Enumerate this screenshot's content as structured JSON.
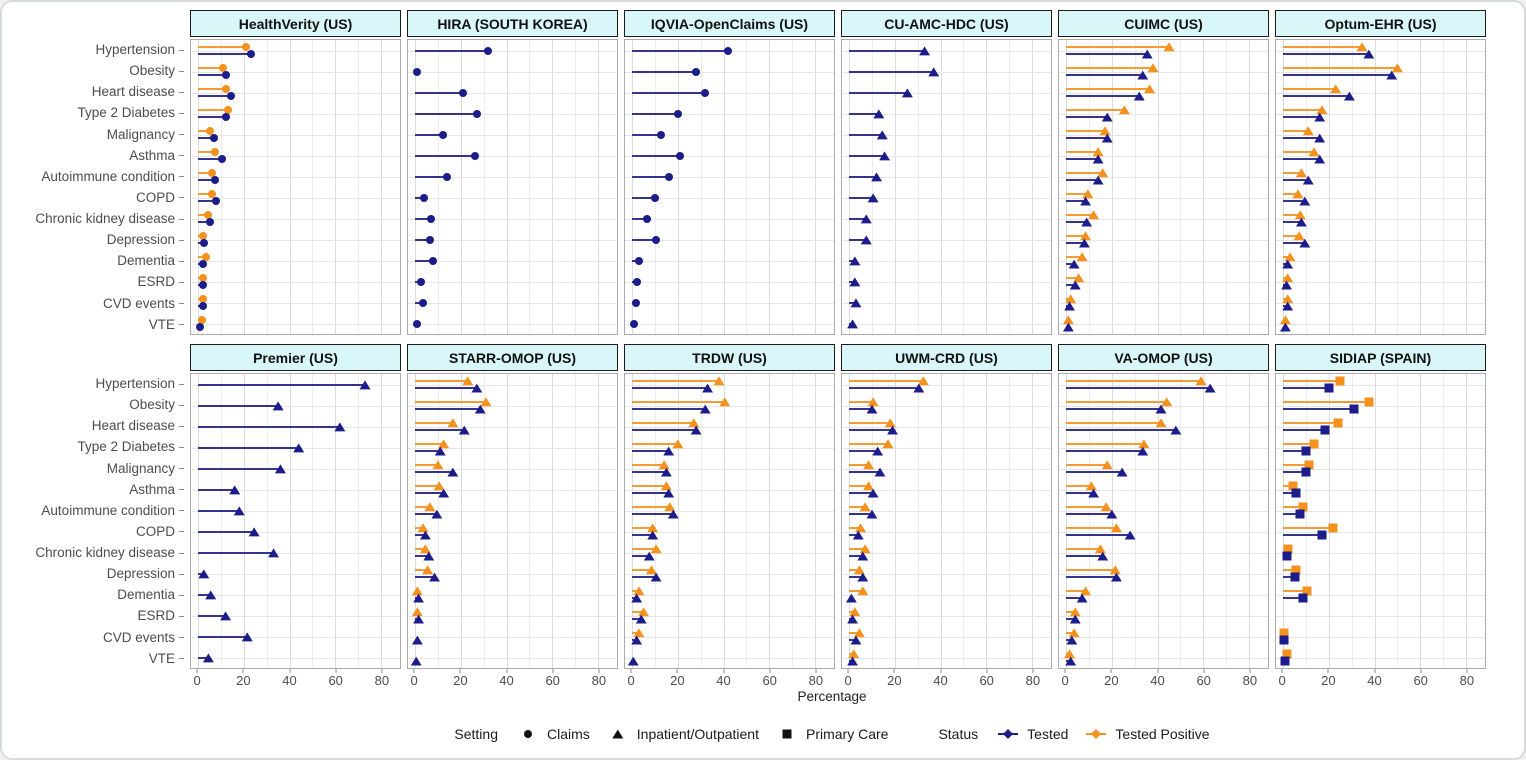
{
  "figure": {
    "xlabel": "Percentage",
    "x_ticks": [
      0,
      20,
      40,
      60,
      80
    ],
    "colors": {
      "tested": "#1c1c8a",
      "tested_line": "#34348c",
      "tested_positive": "#f5921e",
      "tested_positive_line": "#f59b33",
      "header_bg": "#d9f6f8",
      "legend_shape": "#111111"
    },
    "legend": {
      "setting_label": "Setting",
      "settings": [
        {
          "label": "Claims",
          "shape": "circle"
        },
        {
          "label": "Inpatient/Outpatient",
          "shape": "triangle"
        },
        {
          "label": "Primary Care",
          "shape": "square"
        }
      ],
      "status_label": "Status",
      "statuses": [
        {
          "label": "Tested",
          "color_key": "tested"
        },
        {
          "label": "Tested Positive",
          "color_key": "tested_positive"
        }
      ]
    }
  },
  "chart_data": {
    "type": "scatter",
    "variant": "faceted lollipop / dot plot",
    "xlabel": "Percentage",
    "xlim": [
      0,
      80
    ],
    "x_ticks": [
      0,
      20,
      40,
      60,
      80
    ],
    "categories": [
      "Hypertension",
      "Obesity",
      "Heart disease",
      "Type 2 Diabetes",
      "Malignancy",
      "Asthma",
      "Autoimmune condition",
      "COPD",
      "Chronic kidney disease",
      "Depression",
      "Dementia",
      "ESRD",
      "CVD events",
      "VTE"
    ],
    "facets": [
      {
        "name": "HealthVerity (US)",
        "setting": "Claims",
        "shape": "circle",
        "tested": [
          23,
          12,
          14.5,
          12,
          7,
          10.5,
          7.5,
          8,
          5,
          2.5,
          2,
          2,
          2,
          1
        ],
        "tested_positive": [
          21,
          11,
          12,
          13,
          5,
          7.5,
          6,
          6,
          4.5,
          2,
          3.5,
          2,
          2,
          1.5
        ]
      },
      {
        "name": "HIRA (SOUTH KOREA)",
        "setting": "Claims",
        "shape": "circle",
        "tested": [
          32,
          1,
          21,
          27,
          12,
          26,
          14,
          4,
          7,
          6.5,
          8,
          2.5,
          3.5,
          1
        ],
        "tested_positive": [
          null,
          null,
          null,
          null,
          null,
          null,
          null,
          null,
          null,
          null,
          null,
          null,
          null,
          null
        ]
      },
      {
        "name": "IQVIA-OpenClaims (US)",
        "setting": "Claims",
        "shape": "circle",
        "tested": [
          42,
          28,
          32,
          20,
          12.5,
          21,
          16,
          10,
          6.5,
          10.5,
          3,
          2,
          1.5,
          1
        ],
        "tested_positive": [
          null,
          null,
          null,
          null,
          null,
          null,
          null,
          null,
          null,
          null,
          null,
          null,
          null,
          null
        ]
      },
      {
        "name": "CU-AMC-HDC (US)",
        "setting": "Inpatient/Outpatient",
        "shape": "triangle",
        "tested": [
          33,
          37,
          25.5,
          13,
          14.5,
          15.5,
          12,
          10.5,
          7.5,
          7.5,
          2.5,
          2.5,
          3,
          1.5
        ],
        "tested_positive": [
          null,
          null,
          null,
          null,
          null,
          null,
          null,
          null,
          null,
          null,
          null,
          null,
          null,
          null
        ]
      },
      {
        "name": "CUIMC (US)",
        "setting": "Inpatient/Outpatient",
        "shape": "triangle",
        "tested": [
          35.5,
          33.5,
          32,
          18,
          18,
          14,
          14,
          8.5,
          9,
          8,
          3.5,
          4,
          1.5,
          1
        ],
        "tested_positive": [
          45,
          38,
          36.5,
          25.5,
          17,
          14,
          16,
          9.5,
          12,
          8.5,
          7,
          5.5,
          2,
          1
        ]
      },
      {
        "name": "Optum-EHR (US)",
        "setting": "Inpatient/Outpatient",
        "shape": "triangle",
        "tested": [
          37.5,
          47.5,
          29,
          16,
          16,
          16,
          11,
          9.5,
          8,
          9.5,
          2,
          1.5,
          2,
          1
        ],
        "tested_positive": [
          34.5,
          50,
          23,
          17,
          11,
          13.5,
          8,
          6.5,
          7.5,
          7,
          3,
          2,
          2,
          1
        ]
      },
      {
        "name": "Premier (US)",
        "setting": "Inpatient/Outpatient",
        "shape": "triangle",
        "tested": [
          73,
          35,
          62,
          44,
          36,
          16,
          18,
          24.5,
          33,
          2.5,
          5.5,
          12,
          21.5,
          4.5
        ],
        "tested_positive": [
          null,
          null,
          null,
          null,
          null,
          null,
          null,
          null,
          null,
          null,
          null,
          null,
          null,
          null
        ]
      },
      {
        "name": "STARR-OMOP (US)",
        "setting": "Inpatient/Outpatient",
        "shape": "triangle",
        "tested": [
          27,
          28.5,
          21.5,
          11,
          16.5,
          12.5,
          9.5,
          4.5,
          6,
          8.5,
          1.5,
          1.5,
          1,
          0.5
        ],
        "tested_positive": [
          23,
          31,
          16.5,
          12.5,
          10,
          10.5,
          6.5,
          3.5,
          4.5,
          5.5,
          1,
          1,
          null,
          null
        ]
      },
      {
        "name": "TRDW (US)",
        "setting": "Inpatient/Outpatient",
        "shape": "triangle",
        "tested": [
          33,
          32,
          28,
          16,
          15,
          16,
          18,
          9,
          7.5,
          10.5,
          2,
          4,
          2,
          0.5
        ],
        "tested_positive": [
          38,
          40.5,
          27,
          20,
          14,
          15,
          16.5,
          9,
          10.5,
          8.5,
          3,
          5,
          3,
          null
        ]
      },
      {
        "name": "UWM-CRD (US)",
        "setting": "Inpatient/Outpatient",
        "shape": "triangle",
        "tested": [
          30.5,
          10,
          19,
          12.5,
          13.5,
          10.5,
          10,
          4,
          6,
          6,
          1,
          1.5,
          3,
          1.5
        ],
        "tested_positive": [
          32.5,
          10.5,
          18,
          17,
          8.5,
          8.5,
          7,
          5,
          7,
          4.5,
          6,
          2.5,
          4.5,
          2
        ]
      },
      {
        "name": "VA-OMOP (US)",
        "setting": "Inpatient/Outpatient",
        "shape": "triangle",
        "tested": [
          63,
          41.5,
          48,
          33.5,
          24.5,
          12,
          20,
          28,
          16,
          22,
          7,
          4,
          2.5,
          2
        ],
        "tested_positive": [
          59,
          44,
          41.5,
          34,
          18,
          11,
          17.5,
          22,
          15,
          21.5,
          8.5,
          4,
          3.5,
          1.5
        ]
      },
      {
        "name": "SIDIAP (SPAIN)",
        "setting": "Primary Care",
        "shape": "square",
        "tested": [
          20,
          31,
          18.5,
          10,
          10,
          5.5,
          7.5,
          17,
          1.5,
          5,
          8.5,
          null,
          0.5,
          1
        ],
        "tested_positive": [
          25,
          37.5,
          24,
          13.5,
          11.5,
          4.5,
          8.5,
          22,
          2,
          5.5,
          10.5,
          null,
          0.5,
          1.5
        ]
      }
    ],
    "legend_position": "bottom",
    "grid": true
  }
}
